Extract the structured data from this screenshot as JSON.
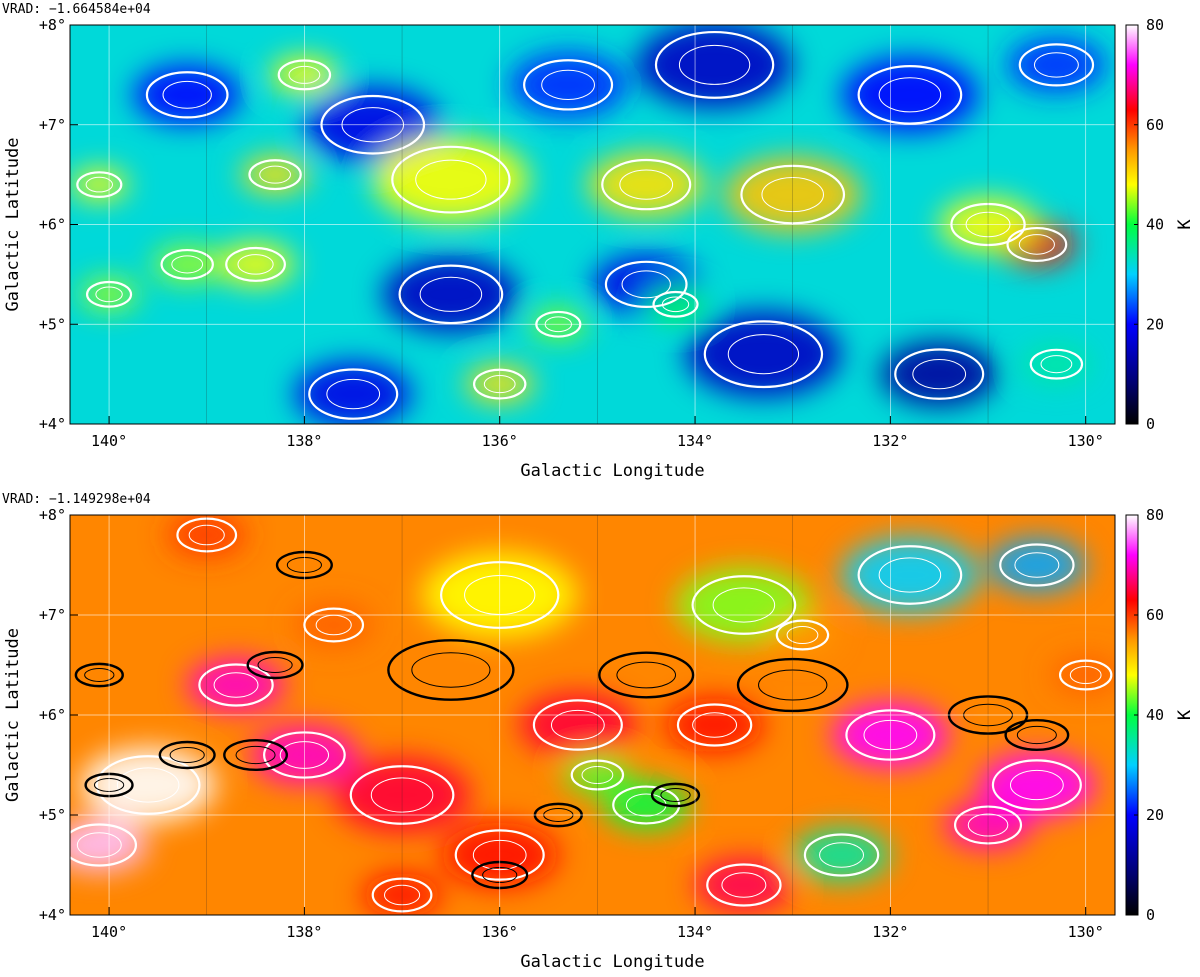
{
  "chart_data": [
    {
      "type": "heatmap",
      "title": "VRAD: −1.664584e+04",
      "xlabel": "Galactic Longitude",
      "ylabel": "Galactic Latitude",
      "colorbar_label": "K",
      "xlim": [
        140.4,
        129.7
      ],
      "ylim": [
        4,
        8
      ],
      "x_ticks": [
        140,
        138,
        136,
        134,
        132,
        130
      ],
      "x_tick_labels": [
        "140°",
        "138°",
        "136°",
        "134°",
        "132°",
        "130°"
      ],
      "y_ticks": [
        4,
        5,
        6,
        7,
        8
      ],
      "y_tick_labels": [
        "+4°",
        "+5°",
        "+6°",
        "+7°",
        "+8°"
      ],
      "colorbar_range": [
        0,
        80
      ],
      "colorbar_ticks": [
        0,
        20,
        40,
        60,
        80
      ],
      "grid": true,
      "contours": [
        "white"
      ],
      "blobs": [
        {
          "x": 139.2,
          "y": 7.3,
          "v": 20,
          "s": 0.55
        },
        {
          "x": 137.3,
          "y": 7.0,
          "v": 18,
          "s": 0.7
        },
        {
          "x": 135.3,
          "y": 7.4,
          "v": 22,
          "s": 0.6
        },
        {
          "x": 133.8,
          "y": 7.6,
          "v": 15,
          "s": 0.8
        },
        {
          "x": 131.8,
          "y": 7.3,
          "v": 20,
          "s": 0.7
        },
        {
          "x": 130.3,
          "y": 7.6,
          "v": 22,
          "s": 0.5
        },
        {
          "x": 136.5,
          "y": 6.45,
          "v": 48,
          "s": 0.8
        },
        {
          "x": 134.5,
          "y": 6.4,
          "v": 50,
          "s": 0.6
        },
        {
          "x": 133.0,
          "y": 6.3,
          "v": 52,
          "s": 0.7
        },
        {
          "x": 138.3,
          "y": 6.5,
          "v": 50,
          "s": 0.35
        },
        {
          "x": 140.1,
          "y": 6.4,
          "v": 48,
          "s": 0.3
        },
        {
          "x": 138.0,
          "y": 7.5,
          "v": 48,
          "s": 0.35
        },
        {
          "x": 136.5,
          "y": 5.3,
          "v": 15,
          "s": 0.7
        },
        {
          "x": 134.5,
          "y": 5.4,
          "v": 18,
          "s": 0.55
        },
        {
          "x": 133.3,
          "y": 4.7,
          "v": 15,
          "s": 0.8
        },
        {
          "x": 131.5,
          "y": 4.5,
          "v": 12,
          "s": 0.6
        },
        {
          "x": 137.5,
          "y": 4.3,
          "v": 18,
          "s": 0.6
        },
        {
          "x": 139.2,
          "y": 5.6,
          "v": 45,
          "s": 0.35
        },
        {
          "x": 138.5,
          "y": 5.6,
          "v": 48,
          "s": 0.4
        },
        {
          "x": 140.0,
          "y": 5.3,
          "v": 45,
          "s": 0.3
        },
        {
          "x": 135.4,
          "y": 5.0,
          "v": 44,
          "s": 0.3
        },
        {
          "x": 136.0,
          "y": 4.4,
          "v": 50,
          "s": 0.35
        },
        {
          "x": 130.5,
          "y": 5.8,
          "v": 62,
          "s": 0.4
        },
        {
          "x": 131.0,
          "y": 6.0,
          "v": 48,
          "s": 0.5
        },
        {
          "x": 134.2,
          "y": 5.2,
          "v": 40,
          "s": 0.3
        },
        {
          "x": 130.3,
          "y": 4.6,
          "v": 35,
          "s": 0.35
        }
      ]
    },
    {
      "type": "heatmap",
      "title": "VRAD: −1.149298e+04",
      "xlabel": "Galactic Longitude",
      "ylabel": "Galactic Latitude",
      "colorbar_label": "K",
      "xlim": [
        140.4,
        129.7
      ],
      "ylim": [
        4,
        8
      ],
      "x_ticks": [
        140,
        138,
        136,
        134,
        132,
        130
      ],
      "x_tick_labels": [
        "140°",
        "138°",
        "136°",
        "134°",
        "132°",
        "130°"
      ],
      "y_ticks": [
        4,
        5,
        6,
        7,
        8
      ],
      "y_tick_labels": [
        "+4°",
        "+5°",
        "+6°",
        "+7°",
        "+8°"
      ],
      "colorbar_range": [
        0,
        80
      ],
      "colorbar_ticks": [
        0,
        20,
        40,
        60,
        80
      ],
      "grid": true,
      "contours": [
        "white",
        "black"
      ],
      "blobs": [
        {
          "x": 139.6,
          "y": 5.3,
          "v": 80,
          "s": 0.7
        },
        {
          "x": 140.1,
          "y": 4.7,
          "v": 78,
          "s": 0.5
        },
        {
          "x": 138.0,
          "y": 5.6,
          "v": 70,
          "s": 0.55
        },
        {
          "x": 137.0,
          "y": 5.2,
          "v": 65,
          "s": 0.7
        },
        {
          "x": 138.7,
          "y": 6.3,
          "v": 70,
          "s": 0.5
        },
        {
          "x": 135.2,
          "y": 5.9,
          "v": 65,
          "s": 0.6
        },
        {
          "x": 133.8,
          "y": 5.9,
          "v": 62,
          "s": 0.5
        },
        {
          "x": 132.0,
          "y": 5.8,
          "v": 72,
          "s": 0.6
        },
        {
          "x": 130.5,
          "y": 5.3,
          "v": 72,
          "s": 0.6
        },
        {
          "x": 131.0,
          "y": 4.9,
          "v": 70,
          "s": 0.45
        },
        {
          "x": 136.0,
          "y": 4.6,
          "v": 62,
          "s": 0.6
        },
        {
          "x": 133.5,
          "y": 4.3,
          "v": 66,
          "s": 0.5
        },
        {
          "x": 136.0,
          "y": 7.2,
          "v": 48,
          "s": 0.8
        },
        {
          "x": 133.5,
          "y": 7.1,
          "v": 44,
          "s": 0.7
        },
        {
          "x": 131.8,
          "y": 7.4,
          "v": 30,
          "s": 0.7
        },
        {
          "x": 130.5,
          "y": 7.5,
          "v": 28,
          "s": 0.5
        },
        {
          "x": 134.5,
          "y": 5.1,
          "v": 40,
          "s": 0.45
        },
        {
          "x": 132.5,
          "y": 4.6,
          "v": 35,
          "s": 0.5
        },
        {
          "x": 135.0,
          "y": 5.4,
          "v": 42,
          "s": 0.35
        },
        {
          "x": 139.0,
          "y": 7.8,
          "v": 60,
          "s": 0.4
        },
        {
          "x": 137.0,
          "y": 4.2,
          "v": 62,
          "s": 0.4
        },
        {
          "x": 132.9,
          "y": 6.8,
          "v": 55,
          "s": 0.35
        },
        {
          "x": 137.7,
          "y": 6.9,
          "v": 58,
          "s": 0.4
        },
        {
          "x": 130.0,
          "y": 6.4,
          "v": 58,
          "s": 0.35
        }
      ]
    }
  ]
}
